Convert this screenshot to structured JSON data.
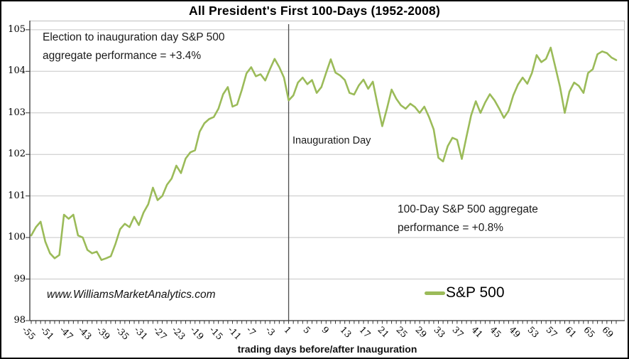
{
  "title": "All President's First 100-Days (1952-2008)",
  "annotations": {
    "election_note_line1": "Election to inauguration day S&P 500",
    "election_note_line2": "aggregate performance = +3.4%",
    "inauguration_label": "Inauguration Day",
    "hundred_day_note_line1": "100-Day S&P 500 aggregate",
    "hundred_day_note_line2": "performance = +0.8%",
    "watermark": "www.WilliamsMarketAnalytics.com"
  },
  "legend": {
    "series_label": "S&P 500"
  },
  "colors": {
    "line": "#9BBB59",
    "gridline": "#c6c6c6",
    "plot_border": "#7f7f7f",
    "axis": "#333333",
    "vline": "#4d4d4d"
  },
  "chart_data": {
    "type": "line",
    "title": "All President's First 100-Days (1952-2008)",
    "xlabel": "trading days before/after Inauguration",
    "ylabel": "",
    "ylim": [
      98,
      105
    ],
    "y_tick_labels": [
      105,
      104,
      103,
      102,
      101,
      100,
      99,
      98
    ],
    "x_start": -55,
    "x_end": 70,
    "x_tick_labels": [
      -55,
      -51,
      -47,
      -43,
      -39,
      -35,
      -31,
      -27,
      -23,
      -19,
      -15,
      -11,
      -7,
      -3,
      1,
      5,
      9,
      13,
      17,
      21,
      25,
      29,
      33,
      37,
      41,
      45,
      49,
      53,
      57,
      61,
      65,
      69
    ],
    "grid": "horizontal",
    "legend_position": "inside-bottom-right",
    "vline": {
      "x": 0,
      "label": "Inauguration Day"
    },
    "series": [
      {
        "name": "S&P 500",
        "color": "#9BBB59",
        "x_from": -55,
        "x_step": 1,
        "values": [
          100.05,
          100.25,
          100.38,
          99.9,
          99.62,
          99.5,
          99.58,
          100.55,
          100.45,
          100.55,
          100.05,
          100.0,
          99.7,
          99.62,
          99.66,
          99.46,
          99.5,
          99.55,
          99.85,
          100.2,
          100.33,
          100.25,
          100.5,
          100.3,
          100.6,
          100.8,
          101.2,
          100.9,
          101.0,
          101.27,
          101.42,
          101.73,
          101.55,
          101.9,
          102.05,
          102.1,
          102.55,
          102.75,
          102.85,
          102.9,
          103.1,
          103.45,
          103.62,
          103.15,
          103.2,
          103.55,
          103.95,
          104.1,
          103.88,
          103.93,
          103.78,
          104.05,
          104.3,
          104.1,
          103.85,
          103.3,
          103.42,
          103.73,
          103.85,
          103.69,
          103.79,
          103.48,
          103.62,
          103.96,
          104.29,
          103.97,
          103.9,
          103.79,
          103.48,
          103.44,
          103.66,
          103.8,
          103.58,
          103.75,
          103.2,
          102.68,
          103.1,
          103.56,
          103.34,
          103.18,
          103.1,
          103.22,
          103.14,
          103.0,
          103.15,
          102.9,
          102.6,
          101.92,
          101.83,
          102.2,
          102.4,
          102.35,
          101.89,
          102.43,
          102.94,
          103.28,
          103.0,
          103.25,
          103.45,
          103.3,
          103.1,
          102.88,
          103.05,
          103.42,
          103.68,
          103.85,
          103.7,
          103.96,
          104.39,
          104.22,
          104.3,
          104.57,
          104.1,
          103.62,
          103.0,
          103.51,
          103.73,
          103.65,
          103.48,
          103.96,
          104.05,
          104.41,
          104.48,
          104.44,
          104.33,
          104.27
        ]
      }
    ]
  }
}
